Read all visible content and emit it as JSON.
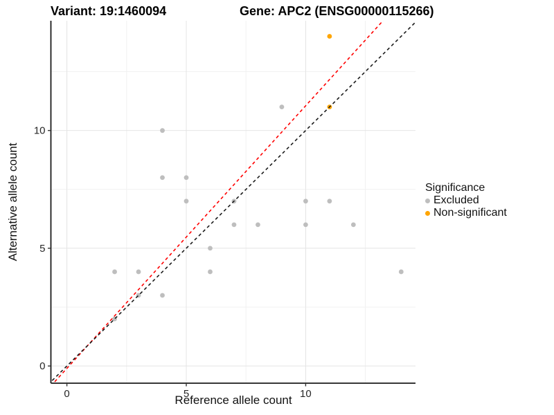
{
  "titles": {
    "variant": "Variant: 19:1460094",
    "gene": "Gene: APC2 (ENSG00000115266)"
  },
  "legend": {
    "title": "Significance",
    "items": [
      {
        "label": "Excluded",
        "color": "#BEBEBE"
      },
      {
        "label": "Non-significant",
        "color": "#FFA500"
      }
    ]
  },
  "chart_data": {
    "type": "scatter",
    "xlabel": "Reference allele count",
    "ylabel": "Alternative allele count",
    "xlim": [
      -0.67,
      14.6
    ],
    "ylim": [
      -0.73,
      14.66
    ],
    "x_ticks": [
      "0",
      "5",
      "10"
    ],
    "y_ticks": [
      "0",
      "5",
      "10"
    ],
    "x_tick_values": [
      0,
      5,
      10
    ],
    "y_tick_values": [
      0,
      5,
      10
    ],
    "x_minor": [
      2.5,
      7.5,
      12.5
    ],
    "y_minor": [
      2.5,
      7.5,
      12.5
    ],
    "grid": true,
    "legend_position": "right",
    "series": [
      {
        "name": "Excluded",
        "color": "#BEBEBE",
        "points": [
          [
            2,
            2
          ],
          [
            2,
            4
          ],
          [
            3,
            3
          ],
          [
            3,
            4
          ],
          [
            4,
            3
          ],
          [
            4,
            8
          ],
          [
            4,
            10
          ],
          [
            5,
            7
          ],
          [
            5,
            8
          ],
          [
            6,
            4
          ],
          [
            6,
            5
          ],
          [
            7,
            6
          ],
          [
            7,
            7
          ],
          [
            8,
            6
          ],
          [
            9,
            11
          ],
          [
            10,
            6
          ],
          [
            10,
            7
          ],
          [
            11,
            7
          ],
          [
            12,
            6
          ],
          [
            14,
            4
          ]
        ]
      },
      {
        "name": "Non-significant",
        "color": "#FFA500",
        "points": [
          [
            11,
            11
          ],
          [
            11,
            14
          ]
        ]
      }
    ],
    "lines": [
      {
        "name": "fit-line",
        "color": "#FF0000",
        "slope": 1.115,
        "intercept": -0.1,
        "dash": "dashed"
      },
      {
        "name": "identity-line",
        "color": "#1A1A1A",
        "slope": 1,
        "intercept": 0,
        "dash": "dashed"
      }
    ],
    "colors": {
      "grid_major": "#E4E4E4",
      "grid_minor": "#F1F1F1",
      "axis": "#1A1A1A",
      "tick_text": "#262626"
    }
  }
}
